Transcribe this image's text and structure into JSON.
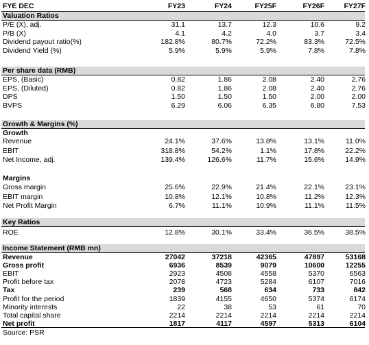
{
  "header": {
    "label": "FYE DEC",
    "years": [
      "FY23",
      "FY24",
      "FY25F",
      "FY26F",
      "FY27F"
    ]
  },
  "valuation": {
    "title": "Valuation Ratios",
    "rows": [
      {
        "label": "P/E (X), adj.",
        "values": [
          "31.1",
          "13.7",
          "12.3",
          "10.6",
          "9.2"
        ]
      },
      {
        "label": "P/B (X)",
        "values": [
          "4.1",
          "4.2",
          "4.0",
          "3.7",
          "3.4"
        ]
      },
      {
        "label": "Dividend payout ratio(%)",
        "values": [
          "182.8%",
          "80.7%",
          "72.2%",
          "83.3%",
          "72.5%"
        ]
      },
      {
        "label": "Dividend Yield (%)",
        "values": [
          "5.9%",
          "5.9%",
          "5.9%",
          "7.8%",
          "7.8%"
        ]
      }
    ]
  },
  "per_share": {
    "title": "Per share data (RMB)",
    "rows": [
      {
        "label": "EPS, (Basic)",
        "values": [
          "0.82",
          "1.86",
          "2.08",
          "2.40",
          "2.76"
        ]
      },
      {
        "label": "EPS, (Diluted)",
        "values": [
          "0.82",
          "1.86",
          "2.08",
          "2.40",
          "2.76"
        ]
      },
      {
        "label": "DPS",
        "values": [
          "1.50",
          "1.50",
          "1.50",
          "2.00",
          "2.00"
        ]
      },
      {
        "label": "BVPS",
        "values": [
          "6.29",
          "6.06",
          "6.35",
          "6.80",
          "7.53"
        ]
      }
    ]
  },
  "growth_margins": {
    "title": "Growth & Margins (%)",
    "growth_title": "Growth",
    "growth_rows": [
      {
        "label": "Revenue",
        "values": [
          "24.1%",
          "37.6%",
          "13.8%",
          "13.1%",
          "11.0%"
        ]
      },
      {
        "label": "EBIT",
        "values": [
          "318.8%",
          "54.2%",
          "1.1%",
          "17.8%",
          "22.2%"
        ]
      },
      {
        "label": "Net Income, adj.",
        "values": [
          "139.4%",
          "126.6%",
          "11.7%",
          "15.6%",
          "14.9%"
        ]
      }
    ],
    "margins_title": "Margins",
    "margins_rows": [
      {
        "label": "Gross margin",
        "values": [
          "25.6%",
          "22.9%",
          "21.4%",
          "22.1%",
          "23.1%"
        ]
      },
      {
        "label": "EBIT margin",
        "values": [
          "10.8%",
          "12.1%",
          "10.8%",
          "11.2%",
          "12.3%"
        ]
      },
      {
        "label": "Net Profit Margin",
        "values": [
          "6.7%",
          "11.1%",
          "10.9%",
          "11.1%",
          "11.5%"
        ]
      }
    ]
  },
  "key_ratios": {
    "title": "Key Ratios",
    "rows": [
      {
        "label": "ROE",
        "values": [
          "12.8%",
          "30.1%",
          "33.4%",
          "36.5%",
          "38.5%"
        ]
      }
    ]
  },
  "income": {
    "title": "Income Statement (RMB mn)",
    "rows": [
      {
        "label": "Revenue",
        "values": [
          "27042",
          "37218",
          "42365",
          "47897",
          "53168"
        ],
        "bold": true
      },
      {
        "label": "Gross profit",
        "values": [
          "6936",
          "8539",
          "9079",
          "10600",
          "12255"
        ],
        "bold": true
      },
      {
        "label": "EBIT",
        "values": [
          "2923",
          "4508",
          "4558",
          "5370",
          "6563"
        ]
      },
      {
        "label": "Profit before tax",
        "values": [
          "2078",
          "4723",
          "5284",
          "6107",
          "7016"
        ]
      },
      {
        "label": "Tax",
        "values": [
          "239",
          "568",
          "634",
          "733",
          "842"
        ],
        "bold": true
      },
      {
        "label": "Profit for the period",
        "values": [
          "1839",
          "4155",
          "4650",
          "5374",
          "6174"
        ]
      },
      {
        "label": "Minority interests",
        "values": [
          "22",
          "38",
          "53",
          "61",
          "70"
        ]
      },
      {
        "label": "Total capital share",
        "values": [
          "2214",
          "2214",
          "2214",
          "2214",
          "2214"
        ]
      },
      {
        "label": "Net profit",
        "values": [
          "1817",
          "4117",
          "4597",
          "5313",
          "6104"
        ],
        "bold": true
      }
    ]
  },
  "source": "Source: PSR"
}
